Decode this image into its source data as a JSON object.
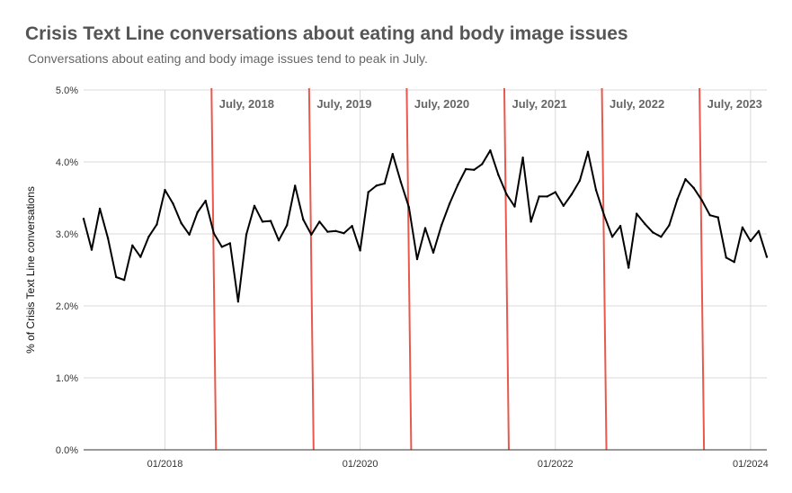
{
  "header": {
    "title": "Crisis Text Line conversations about eating and body image issues",
    "subtitle": "Conversations about eating and body image issues tend to peak in July."
  },
  "colors": {
    "line": "#000000",
    "marker": "#e8594b",
    "grid": "#d9d9d9",
    "axis": "#333333"
  },
  "chart_data": {
    "type": "line",
    "title": "Crisis Text Line conversations about eating and body image issues",
    "subtitle": "Conversations about eating and body image issues tend to peak in July.",
    "xlabel": "",
    "ylabel": "% of Crisis Text Line conversations",
    "ylim": [
      0,
      5
    ],
    "y_ticks": [
      0,
      1,
      2,
      3,
      4,
      5
    ],
    "y_tick_labels": [
      "0.0%",
      "1.0%",
      "2.0%",
      "3.0%",
      "4.0%",
      "5.0%"
    ],
    "grid": true,
    "x_start": "2017-03",
    "x_ticks": [
      {
        "label": "01/2018",
        "index": 10
      },
      {
        "label": "01/2020",
        "index": 34
      },
      {
        "label": "01/2022",
        "index": 58
      },
      {
        "label": "01/2024",
        "index": 82
      }
    ],
    "annotations": [
      {
        "label": "July, 2018",
        "index": 16
      },
      {
        "label": "July, 2019",
        "index": 28
      },
      {
        "label": "July, 2020",
        "index": 40
      },
      {
        "label": "July, 2021",
        "index": 52
      },
      {
        "label": "July, 2022",
        "index": 64
      },
      {
        "label": "July, 2023",
        "index": 76
      }
    ],
    "series": [
      {
        "name": "% of Crisis Text Line conversations",
        "values": [
          3.21,
          2.78,
          3.35,
          2.94,
          2.4,
          2.36,
          2.84,
          2.68,
          2.96,
          3.13,
          3.61,
          3.42,
          3.15,
          2.99,
          3.3,
          3.46,
          3.01,
          2.82,
          2.87,
          2.06,
          2.99,
          3.39,
          3.17,
          3.18,
          2.91,
          3.12,
          3.67,
          3.2,
          2.99,
          3.17,
          3.03,
          3.04,
          3.01,
          3.11,
          2.77,
          3.58,
          3.67,
          3.7,
          4.11,
          3.72,
          3.37,
          2.65,
          3.08,
          2.74,
          3.12,
          3.42,
          3.68,
          3.9,
          3.89,
          3.97,
          4.16,
          3.82,
          3.55,
          3.38,
          4.06,
          3.17,
          3.52,
          3.52,
          3.58,
          3.39,
          3.55,
          3.74,
          4.14,
          3.61,
          3.26,
          2.96,
          3.11,
          2.53,
          3.28,
          3.14,
          3.02,
          2.96,
          3.12,
          3.48,
          3.76,
          3.64,
          3.47,
          3.26,
          3.23,
          2.67,
          2.61,
          3.09,
          2.9,
          3.04,
          2.68
        ]
      }
    ]
  }
}
